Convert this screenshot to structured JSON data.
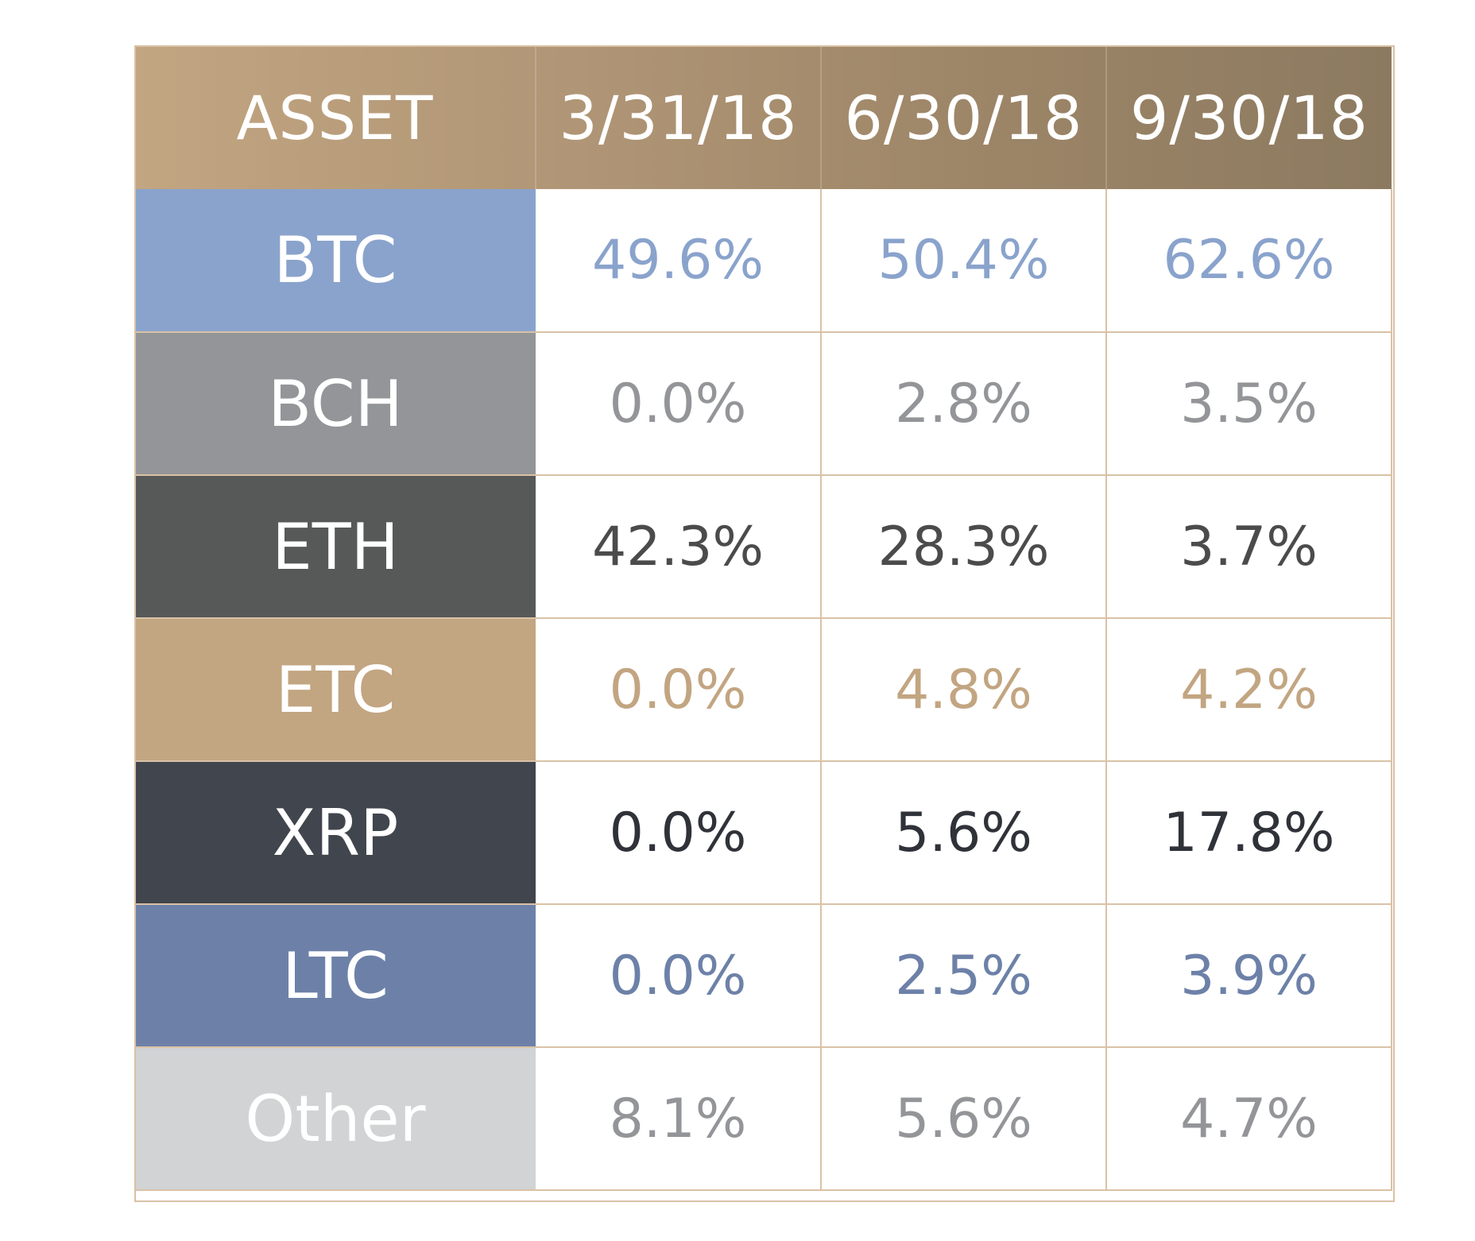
{
  "chart_data": {
    "type": "table",
    "columns": [
      "ASSET",
      "3/31/18",
      "6/30/18",
      "9/30/18"
    ],
    "rows": [
      {
        "asset": "BTC",
        "values": [
          "49.6%",
          "50.4%",
          "62.6%"
        ],
        "label_bg": "#8aa3cc",
        "value_color": "#8aa3cc"
      },
      {
        "asset": "BCH",
        "values": [
          "0.0%",
          "2.8%",
          "3.5%"
        ],
        "label_bg": "#939598",
        "value_color": "#939598"
      },
      {
        "asset": "ETH",
        "values": [
          "42.3%",
          "28.3%",
          "3.7%"
        ],
        "label_bg": "#575858",
        "value_color": "#4b4b4b"
      },
      {
        "asset": "ETC",
        "values": [
          "0.0%",
          "4.8%",
          "4.2%"
        ],
        "label_bg": "#c2a581",
        "value_color": "#c2a581"
      },
      {
        "asset": "XRP",
        "values": [
          "0.0%",
          "5.6%",
          "17.8%"
        ],
        "label_bg": "#41454d",
        "value_color": "#2f3238"
      },
      {
        "asset": "LTC",
        "values": [
          "0.0%",
          "2.5%",
          "3.9%"
        ],
        "label_bg": "#6d81a8",
        "value_color": "#6d81a8"
      },
      {
        "asset": "Other",
        "values": [
          "8.1%",
          "5.6%",
          "4.7%"
        ],
        "label_bg": "#d1d3d4",
        "value_color": "#939598"
      }
    ],
    "header_gradient": [
      "#c2a581",
      "#8c7a60"
    ],
    "grid_color": "#d9c2a6"
  }
}
